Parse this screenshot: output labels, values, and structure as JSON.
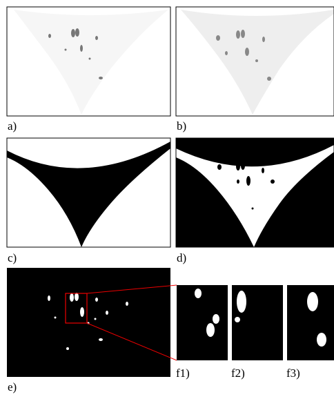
{
  "panels": {
    "a": "a)",
    "b": "b)",
    "c": "c)",
    "d": "d)",
    "e": "e)",
    "f1": "f1)",
    "f2": "f2)",
    "f3": "f3)"
  }
}
